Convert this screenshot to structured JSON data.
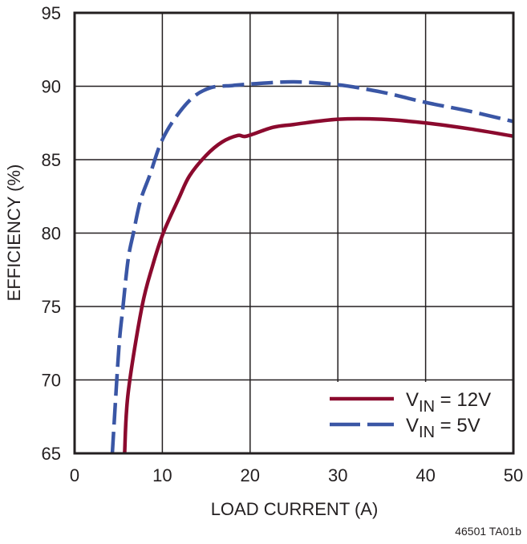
{
  "chart_data": {
    "type": "line",
    "title": "",
    "xlabel": "LOAD CURRENT (A)",
    "ylabel": "EFFICIENCY (%)",
    "xlim": [
      0,
      50
    ],
    "ylim": [
      65,
      95
    ],
    "xticks": [
      0,
      10,
      20,
      30,
      40,
      50
    ],
    "yticks": [
      65,
      70,
      75,
      80,
      85,
      90,
      95
    ],
    "grid": true,
    "legend_position": "bottom-right",
    "series": [
      {
        "name": "VIN = 12V",
        "name_main": "V",
        "name_sub": "IN",
        "name_rest": " = 12V",
        "color": "#8b0a2e",
        "style": "solid",
        "x": [
          5.7,
          6.1,
          7.65,
          8.9,
          10.1,
          11.9,
          13.1,
          15,
          16.8,
          18.6,
          19.6,
          22.6,
          25,
          30,
          35,
          40,
          45,
          50
        ],
        "y": [
          65,
          69.1,
          74.9,
          77.8,
          80,
          82.4,
          83.9,
          85.3,
          86.2,
          86.65,
          86.6,
          87.2,
          87.4,
          87.75,
          87.75,
          87.5,
          87.1,
          86.6
        ]
      },
      {
        "name": "VIN = 5V",
        "name_main": "V",
        "name_sub": "IN",
        "name_rest": " = 5V",
        "color": "#3a56a5",
        "style": "dashed",
        "x": [
          4.3,
          4.45,
          5.05,
          5.5,
          6.1,
          6.7,
          7.5,
          8.6,
          9.8,
          11.3,
          13.4,
          15.5,
          18,
          20,
          25,
          30,
          35,
          40,
          45,
          50
        ],
        "y": [
          65,
          66.5,
          72.2,
          74.9,
          78.2,
          80,
          82.2,
          84,
          86.1,
          87.7,
          89.2,
          89.9,
          90.05,
          90.15,
          90.3,
          90.1,
          89.6,
          88.9,
          88.3,
          87.6
        ]
      }
    ]
  },
  "footnote": "46501 TA01b"
}
